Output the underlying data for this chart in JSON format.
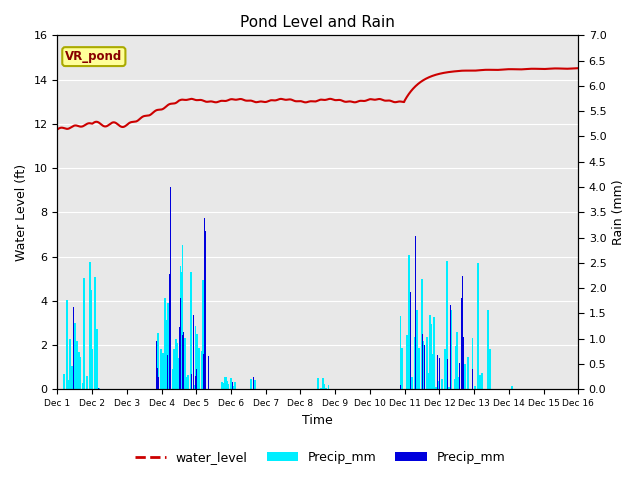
{
  "title": "Pond Level and Rain",
  "xlabel": "Time",
  "ylabel_left": "Water Level (ft)",
  "ylabel_right": "Rain (mm)",
  "annotation": "VR_pond",
  "ylim_left": [
    0,
    16
  ],
  "ylim_right": [
    0.0,
    7.0
  ],
  "yticks_left": [
    0,
    2,
    4,
    6,
    8,
    10,
    12,
    14,
    16
  ],
  "yticks_right": [
    0.0,
    0.5,
    1.0,
    1.5,
    2.0,
    2.5,
    3.0,
    3.5,
    4.0,
    4.5,
    5.0,
    5.5,
    6.0,
    6.5,
    7.0
  ],
  "xtick_labels": [
    "Dec 1",
    "Dec 2",
    "Dec 3",
    "Dec 4",
    "Dec 5",
    "Dec 6",
    "Dec 7",
    "Dec 8",
    "Dec 9",
    "Dec 10",
    "Dec 11",
    "Dec 12",
    "Dec 13",
    "Dec 14",
    "Dec 15",
    "Dec 16"
  ],
  "background_color": "#e8e8e8",
  "water_level_color": "#cc0000",
  "precip_cyan_color": "#00eeff",
  "precip_blue_color": "#0000dd",
  "legend_entries": [
    "water_level",
    "Precip_mm",
    "Precip_mm"
  ],
  "title_fontsize": 11,
  "axis_fontsize": 9,
  "tick_fontsize": 8
}
